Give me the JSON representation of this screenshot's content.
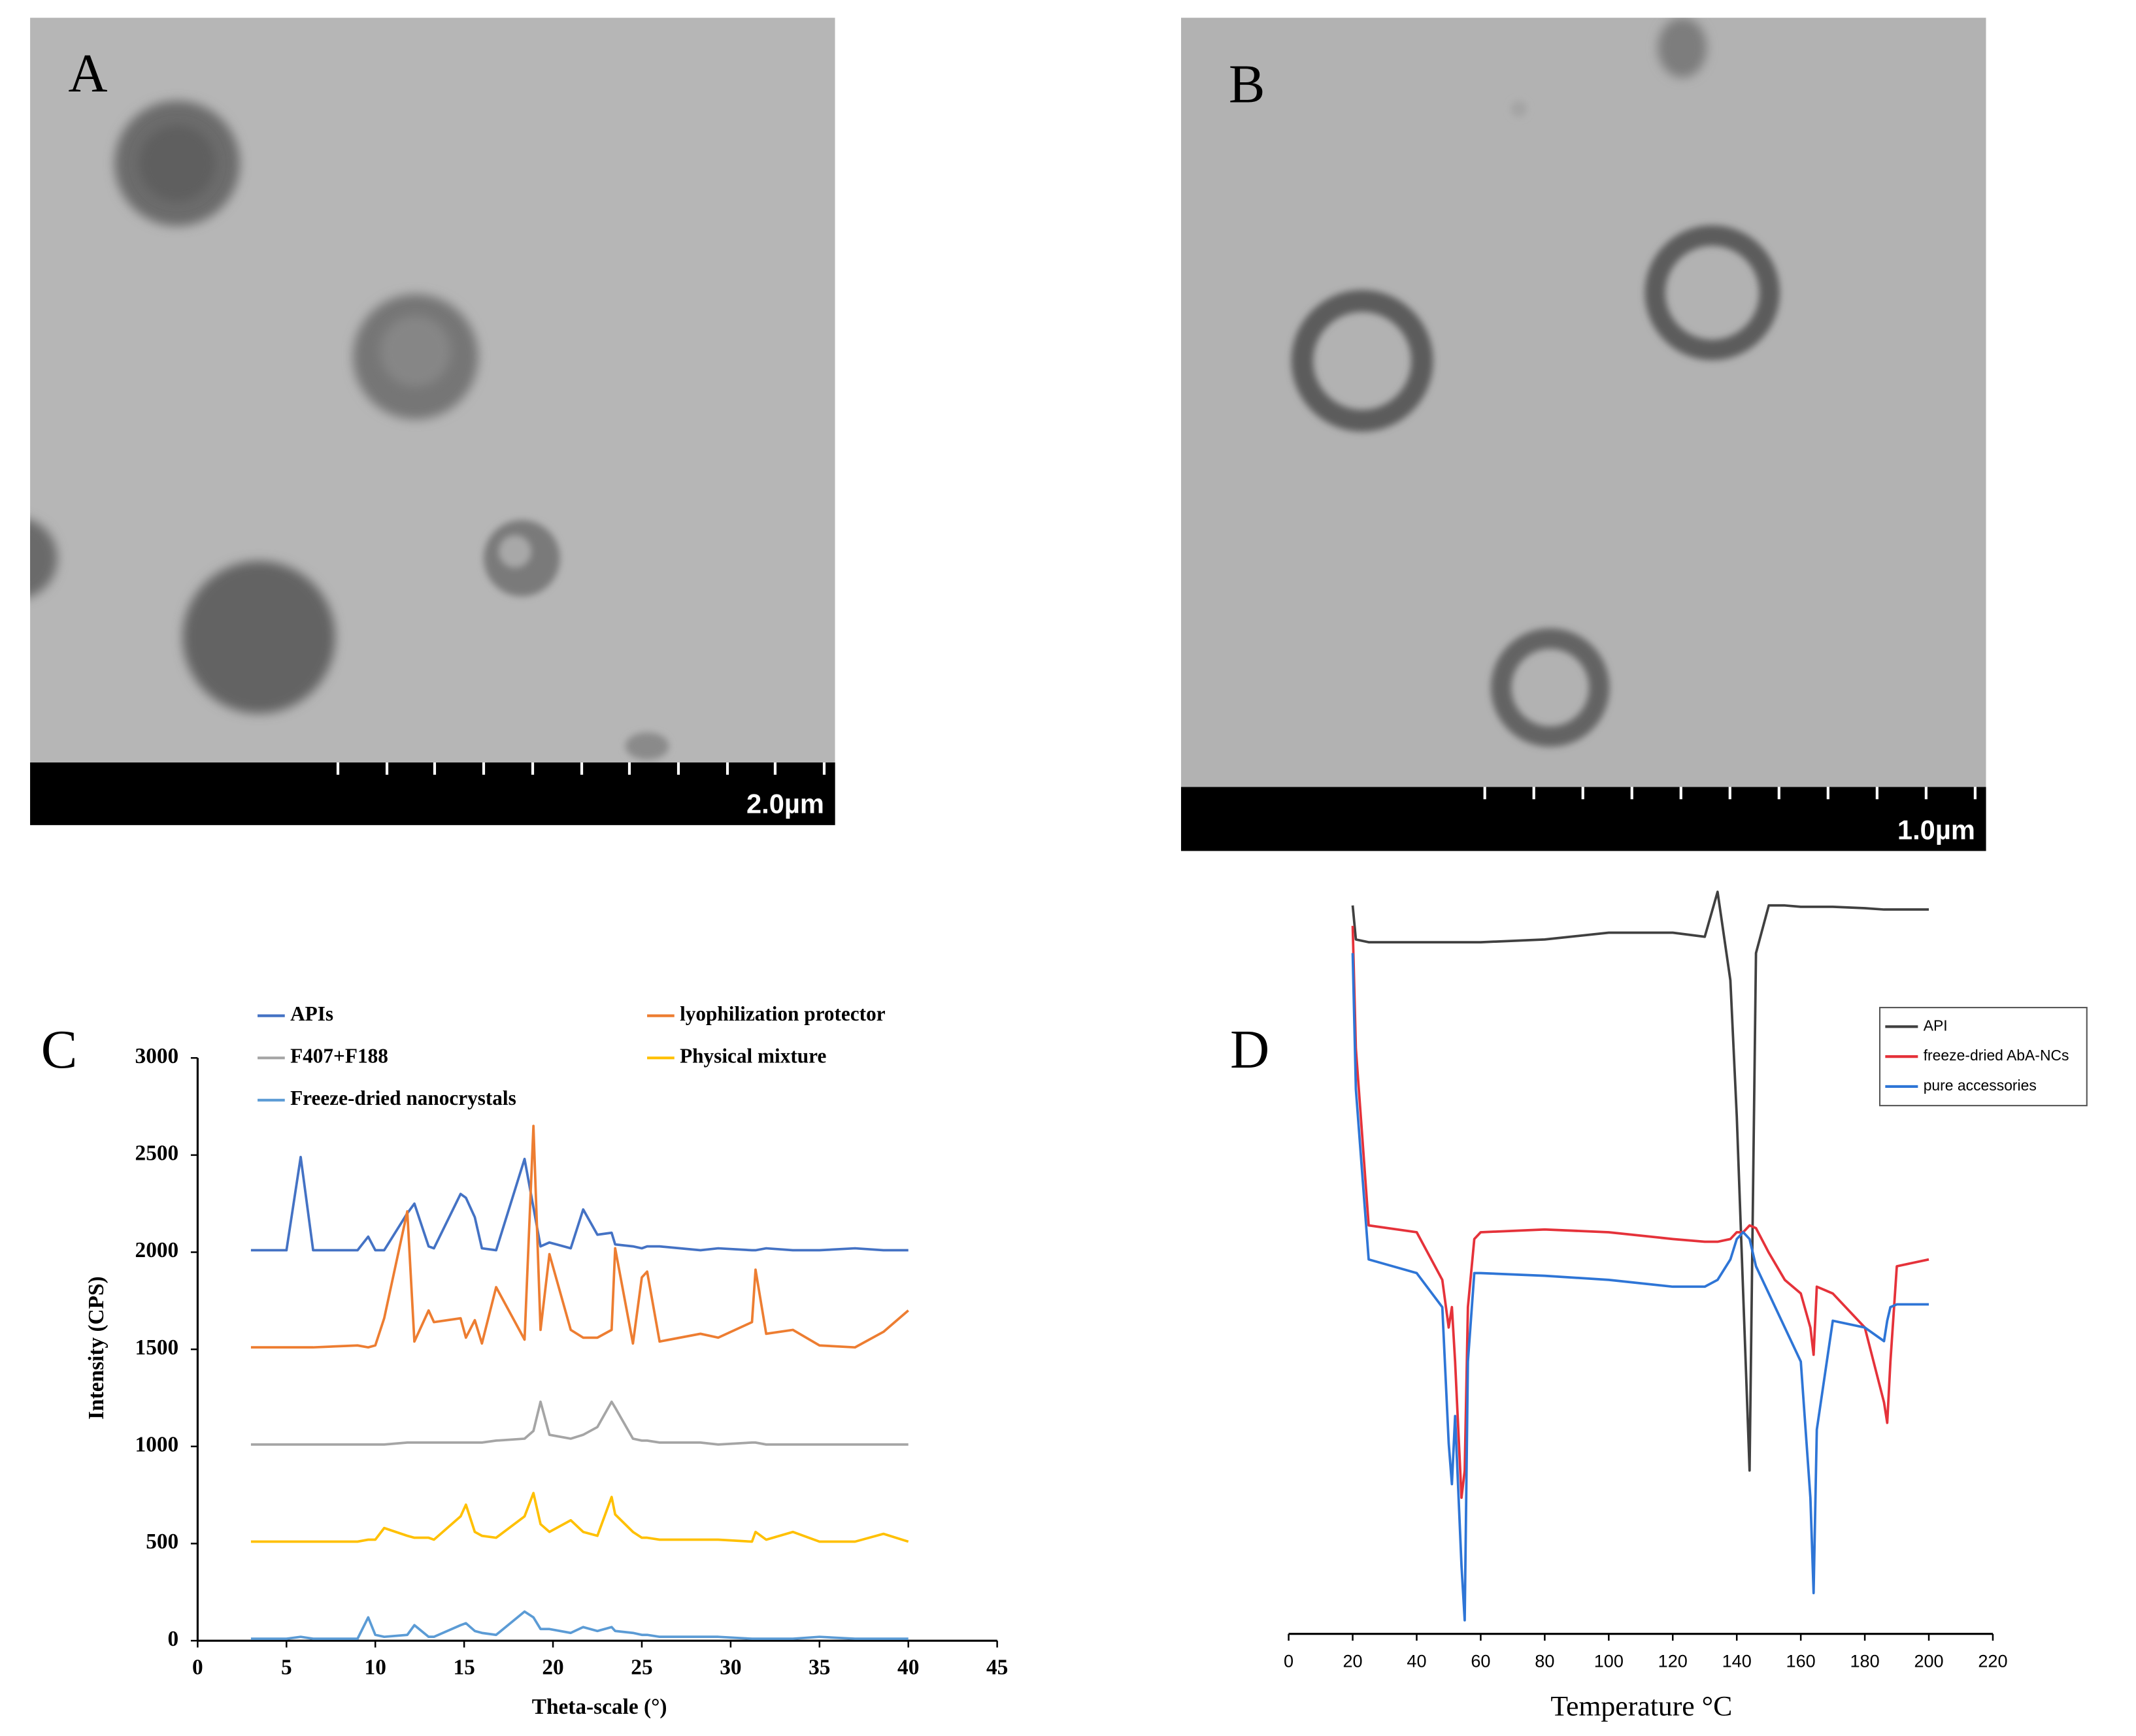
{
  "panels": {
    "A": {
      "label": "A",
      "scale_bar": "2.0µm"
    },
    "B": {
      "label": "B",
      "scale_bar": "1.0µm"
    }
  },
  "chart_data": [
    {
      "type": "line",
      "panel_label": "C",
      "x_label": "Theta-scale (°)",
      "y_label": "Intensity (CPS)",
      "xlim": [
        0,
        45
      ],
      "xticks": [
        0,
        5,
        10,
        15,
        20,
        25,
        30,
        35,
        40,
        45
      ],
      "ylim": [
        0,
        3000
      ],
      "yticks": [
        0,
        500,
        1000,
        1500,
        2000,
        2500,
        3000
      ],
      "legend": "top",
      "x": [
        3,
        5,
        5.8,
        6.5,
        9,
        9.6,
        10,
        10.5,
        11.8,
        12.2,
        13,
        13.3,
        14.8,
        15.1,
        15.6,
        16,
        16.8,
        18.4,
        18.9,
        19.3,
        19.8,
        21,
        21.7,
        22.5,
        23.3,
        23.5,
        24.5,
        25,
        25.3,
        26,
        28.3,
        29.3,
        31.2,
        31.4,
        32,
        33.5,
        35,
        37,
        38.6,
        40
      ],
      "series": [
        {
          "name": "APIs",
          "color": "#4472c4",
          "values": [
            2010,
            2010,
            2490,
            2010,
            2010,
            2080,
            2010,
            2010,
            2200,
            2250,
            2030,
            2020,
            2300,
            2280,
            2180,
            2020,
            2010,
            2480,
            2230,
            2030,
            2050,
            2020,
            2220,
            2090,
            2100,
            2040,
            2030,
            2020,
            2030,
            2030,
            2010,
            2020,
            2010,
            2010,
            2020,
            2010,
            2010,
            2020,
            2010,
            2010
          ]
        },
        {
          "name": "lyophilization protector",
          "color": "#ed7d31",
          "values": [
            1510,
            1510,
            1510,
            1510,
            1520,
            1510,
            1520,
            1660,
            2210,
            1540,
            1700,
            1640,
            1660,
            1560,
            1650,
            1530,
            1820,
            1550,
            2650,
            1600,
            1990,
            1600,
            1560,
            1560,
            1600,
            2020,
            1530,
            1870,
            1900,
            1540,
            1580,
            1560,
            1640,
            1910,
            1580,
            1600,
            1520,
            1510,
            1590,
            1700
          ]
        },
        {
          "name": "F407+F188",
          "color": "#a5a5a5",
          "values": [
            1010,
            1010,
            1010,
            1010,
            1010,
            1010,
            1010,
            1010,
            1020,
            1020,
            1020,
            1020,
            1020,
            1020,
            1020,
            1020,
            1030,
            1040,
            1080,
            1230,
            1060,
            1040,
            1060,
            1100,
            1230,
            1200,
            1040,
            1030,
            1030,
            1020,
            1020,
            1010,
            1020,
            1020,
            1010,
            1010,
            1010,
            1010,
            1010,
            1010
          ]
        },
        {
          "name": "Physical mixture",
          "color": "#ffc000",
          "values": [
            510,
            510,
            510,
            510,
            510,
            520,
            520,
            580,
            540,
            530,
            530,
            520,
            640,
            700,
            560,
            540,
            530,
            640,
            760,
            600,
            560,
            620,
            560,
            540,
            740,
            650,
            560,
            530,
            530,
            520,
            520,
            520,
            510,
            560,
            520,
            560,
            510,
            510,
            550,
            510
          ]
        },
        {
          "name": "Freeze-dried nanocrystals",
          "color": "#5b9bd5",
          "values": [
            10,
            10,
            20,
            10,
            10,
            120,
            30,
            20,
            30,
            80,
            20,
            20,
            80,
            90,
            50,
            40,
            30,
            150,
            120,
            60,
            60,
            40,
            70,
            50,
            70,
            50,
            40,
            30,
            30,
            20,
            20,
            20,
            10,
            10,
            10,
            10,
            20,
            10,
            10,
            10
          ]
        }
      ]
    },
    {
      "type": "line",
      "panel_label": "D",
      "x_label": "Temperature °C",
      "xlim": [
        0,
        220
      ],
      "xticks": [
        0,
        20,
        40,
        60,
        80,
        100,
        120,
        140,
        160,
        180,
        200,
        220
      ],
      "legend": "upper right",
      "x": [
        20,
        21,
        25,
        40,
        48,
        50,
        51,
        52,
        54,
        55,
        56,
        58,
        60,
        80,
        100,
        120,
        130,
        134,
        138,
        140,
        142,
        144,
        146,
        150,
        155,
        160,
        163,
        164,
        165,
        170,
        180,
        186,
        187,
        188,
        190,
        200
      ],
      "series": [
        {
          "name": "API",
          "color": "#404040",
          "values": [
            535,
            510,
            508,
            508,
            508,
            508,
            508,
            508,
            508,
            508,
            508,
            508,
            508,
            510,
            515,
            515,
            512,
            545,
            480,
            380,
            250,
            120,
            500,
            535,
            535,
            534,
            534,
            534,
            534,
            534,
            533,
            532,
            532,
            532,
            532,
            532
          ]
        },
        {
          "name": "freeze-dried AbA-NCs",
          "color": "#e5323a",
          "values": [
            520,
            430,
            300,
            295,
            260,
            225,
            240,
            200,
            100,
            120,
            240,
            290,
            295,
            297,
            295,
            290,
            288,
            288,
            290,
            295,
            295,
            300,
            298,
            280,
            260,
            250,
            225,
            205,
            255,
            250,
            225,
            170,
            155,
            200,
            270,
            275
          ]
        },
        {
          "name": "pure accessories",
          "color": "#2e75d6",
          "values": [
            500,
            400,
            275,
            265,
            240,
            140,
            110,
            160,
            50,
            10,
            200,
            265,
            265,
            263,
            260,
            255,
            255,
            260,
            275,
            290,
            295,
            290,
            270,
            250,
            225,
            200,
            100,
            30,
            150,
            230,
            225,
            215,
            230,
            240,
            242,
            242
          ]
        }
      ]
    }
  ]
}
